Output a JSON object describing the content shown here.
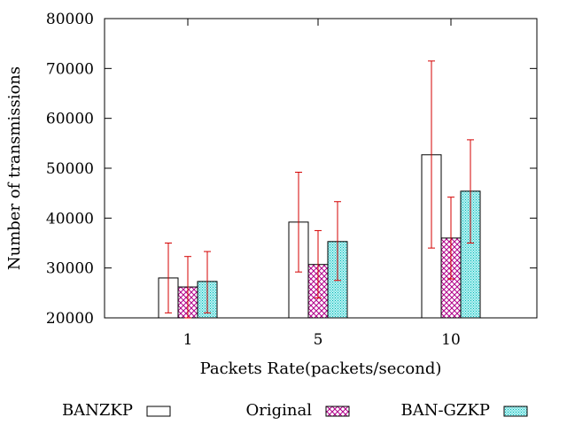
{
  "chart_data": {
    "type": "bar",
    "title": "",
    "xlabel": "Packets Rate(packets/second)",
    "ylabel": "Number of transmissions",
    "categories": [
      "1",
      "5",
      "10"
    ],
    "ylim": [
      20000,
      80000
    ],
    "yticks": [
      20000,
      30000,
      40000,
      50000,
      60000,
      70000,
      80000
    ],
    "ytick_labels": [
      "20000",
      "30000",
      "40000",
      "50000",
      "60000",
      "70000",
      "80000"
    ],
    "grid": false,
    "legend_position": "bottom",
    "series": [
      {
        "name": "BANZKP",
        "fill": "white",
        "values": [
          28000,
          39200,
          52700
        ],
        "err_low": [
          21000,
          29200,
          34000
        ],
        "err_high": [
          35000,
          49200,
          71500
        ]
      },
      {
        "name": "Original",
        "fill": "crosshatch-magenta",
        "values": [
          26200,
          30700,
          36000
        ],
        "err_low": [
          20000,
          24000,
          27800
        ],
        "err_high": [
          32300,
          37500,
          44200
        ]
      },
      {
        "name": "BAN-GZKP",
        "fill": "dots-cyan",
        "values": [
          27300,
          35300,
          45400
        ],
        "err_low": [
          21000,
          27500,
          35000
        ],
        "err_high": [
          33300,
          43300,
          55700
        ]
      }
    ],
    "error_bar_color": "#d40000",
    "colors": {
      "pattern_magenta": "#b0008a",
      "pattern_cyan": "#00b5b5",
      "pattern_cyan_bg": "#b8f2f2"
    }
  }
}
